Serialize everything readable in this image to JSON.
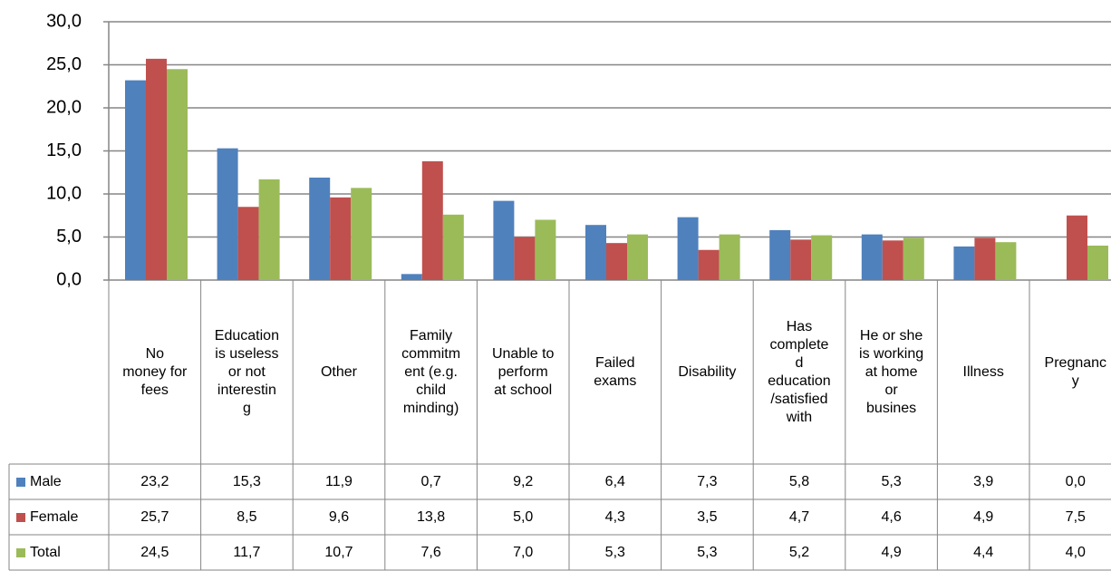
{
  "chart_data": {
    "type": "bar",
    "categories": [
      "No\nmoney for\nfees",
      "Education\nis useless\nor not\ninterestin\ng",
      "Other",
      "Family\ncommitm\nent (e.g.\nchild\nminding)",
      "Unable to\nperform\nat school",
      "Failed\nexams",
      "Disability",
      "Has\ncomplete\nd\neducation\n/satisfied\nwith",
      "He or she\nis working\nat home\nor\nbusines",
      "Illness",
      "Pregnanc\ny"
    ],
    "series": [
      {
        "name": "Male",
        "color": "#4f81bd",
        "values": [
          23.2,
          15.3,
          11.9,
          0.7,
          9.2,
          6.4,
          7.3,
          5.8,
          5.3,
          3.9,
          0.0
        ],
        "value_labels": [
          "23,2",
          "15,3",
          "11,9",
          "0,7",
          "9,2",
          "6,4",
          "7,3",
          "5,8",
          "5,3",
          "3,9",
          "0,0"
        ]
      },
      {
        "name": "Female",
        "color": "#c0504d",
        "values": [
          25.7,
          8.5,
          9.6,
          13.8,
          5.0,
          4.3,
          3.5,
          4.7,
          4.6,
          4.9,
          7.5
        ],
        "value_labels": [
          "25,7",
          "8,5",
          "9,6",
          "13,8",
          "5,0",
          "4,3",
          "3,5",
          "4,7",
          "4,6",
          "4,9",
          "7,5"
        ]
      },
      {
        "name": "Total",
        "color": "#9bbb59",
        "values": [
          24.5,
          11.7,
          10.7,
          7.6,
          7.0,
          5.3,
          5.3,
          5.2,
          4.9,
          4.4,
          4.0
        ],
        "value_labels": [
          "24,5",
          "11,7",
          "10,7",
          "7,6",
          "7,0",
          "5,3",
          "5,3",
          "5,2",
          "4,9",
          "4,4",
          "4,0"
        ]
      }
    ],
    "ylim": [
      0,
      30
    ],
    "yticks": [
      {
        "value": 0,
        "label": "0,0"
      },
      {
        "value": 5,
        "label": "5,0"
      },
      {
        "value": 10,
        "label": "10,0"
      },
      {
        "value": 15,
        "label": "15,0"
      },
      {
        "value": 20,
        "label": "20,0"
      },
      {
        "value": 25,
        "label": "25,0"
      },
      {
        "value": 30,
        "label": "30,0"
      }
    ],
    "grid": true
  }
}
